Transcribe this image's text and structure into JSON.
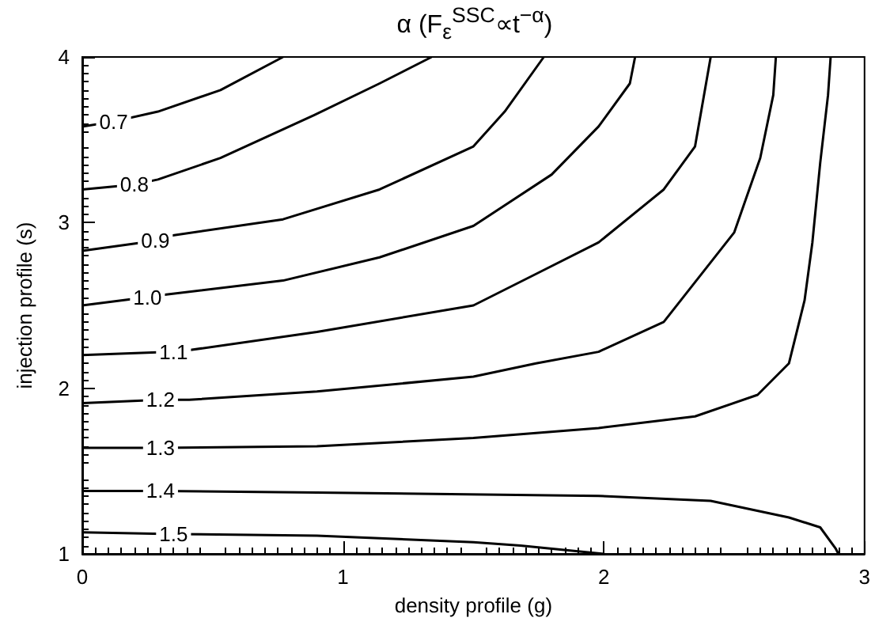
{
  "chart_data": {
    "type": "line",
    "title": "α (F$_{ε}$$^{SSC}$∝t$^{−α}$)",
    "xlabel": "density profile (g)",
    "ylabel": "injection profile (s)",
    "xlim": [
      0,
      3
    ],
    "xticks": [
      0,
      1,
      2,
      3
    ],
    "ylim": [
      1,
      4
    ],
    "yticks": [
      1,
      2,
      3,
      4
    ],
    "grid": false,
    "legend": false,
    "series": [
      {
        "name": "0.7",
        "color": "#000000",
        "x": [
          0,
          0.12,
          0.29,
          0.53,
          0.77
        ],
        "values": [
          3.58,
          3.61,
          3.67,
          3.8,
          4.0
        ]
      },
      {
        "name": "0.8",
        "color": "#000000",
        "x": [
          0,
          0.2,
          0.29,
          0.53,
          0.89,
          1.14,
          1.34
        ],
        "values": [
          3.2,
          3.23,
          3.26,
          3.39,
          3.65,
          3.84,
          4.0
        ]
      },
      {
        "name": "0.9",
        "color": "#000000",
        "x": [
          0,
          0.28,
          0.29,
          0.77,
          1.14,
          1.5,
          1.62,
          1.77
        ],
        "values": [
          2.83,
          2.89,
          2.91,
          3.02,
          3.2,
          3.46,
          3.67,
          4.0
        ]
      },
      {
        "name": "1.0",
        "color": "#000000",
        "x": [
          0,
          0.25,
          0.29,
          0.77,
          1.14,
          1.5,
          1.8,
          1.98,
          2.1,
          2.12
        ],
        "values": [
          2.5,
          2.55,
          2.56,
          2.65,
          2.79,
          2.98,
          3.29,
          3.58,
          3.84,
          4.0
        ]
      },
      {
        "name": "1.1",
        "color": "#000000",
        "x": [
          0,
          0.35,
          0.41,
          0.9,
          1.5,
          1.74,
          1.98,
          2.23,
          2.35,
          2.41
        ],
        "values": [
          2.2,
          2.22,
          2.23,
          2.34,
          2.5,
          2.69,
          2.88,
          3.2,
          3.46,
          4.0
        ]
      },
      {
        "name": "1.2",
        "color": "#000000",
        "x": [
          0,
          0.3,
          0.41,
          0.9,
          1.5,
          1.74,
          1.98,
          2.23,
          2.5,
          2.6,
          2.65,
          2.66
        ],
        "values": [
          1.91,
          1.93,
          1.93,
          1.98,
          2.07,
          2.15,
          2.22,
          2.4,
          2.94,
          3.39,
          3.77,
          4.0
        ]
      },
      {
        "name": "1.3",
        "color": "#000000",
        "x": [
          0,
          0.3,
          0.9,
          1.5,
          1.98,
          2.35,
          2.59,
          2.71,
          2.77,
          2.8,
          2.83,
          2.86,
          2.87
        ],
        "values": [
          1.64,
          1.64,
          1.65,
          1.7,
          1.76,
          1.83,
          1.96,
          2.15,
          2.53,
          2.88,
          3.36,
          3.77,
          4.0
        ]
      },
      {
        "name": "1.4",
        "color": "#000000",
        "x": [
          0,
          0.3,
          0.9,
          1.98,
          2.41,
          2.71,
          2.83,
          2.89,
          2.9
        ],
        "values": [
          1.38,
          1.38,
          1.37,
          1.35,
          1.32,
          1.22,
          1.16,
          1.03,
          1.0
        ]
      },
      {
        "name": "1.5",
        "color": "#000000",
        "x": [
          0,
          0.35,
          0.9,
          1.5,
          1.68,
          2.0
        ],
        "values": [
          1.13,
          1.12,
          1.11,
          1.07,
          1.05,
          1.0
        ]
      }
    ]
  }
}
